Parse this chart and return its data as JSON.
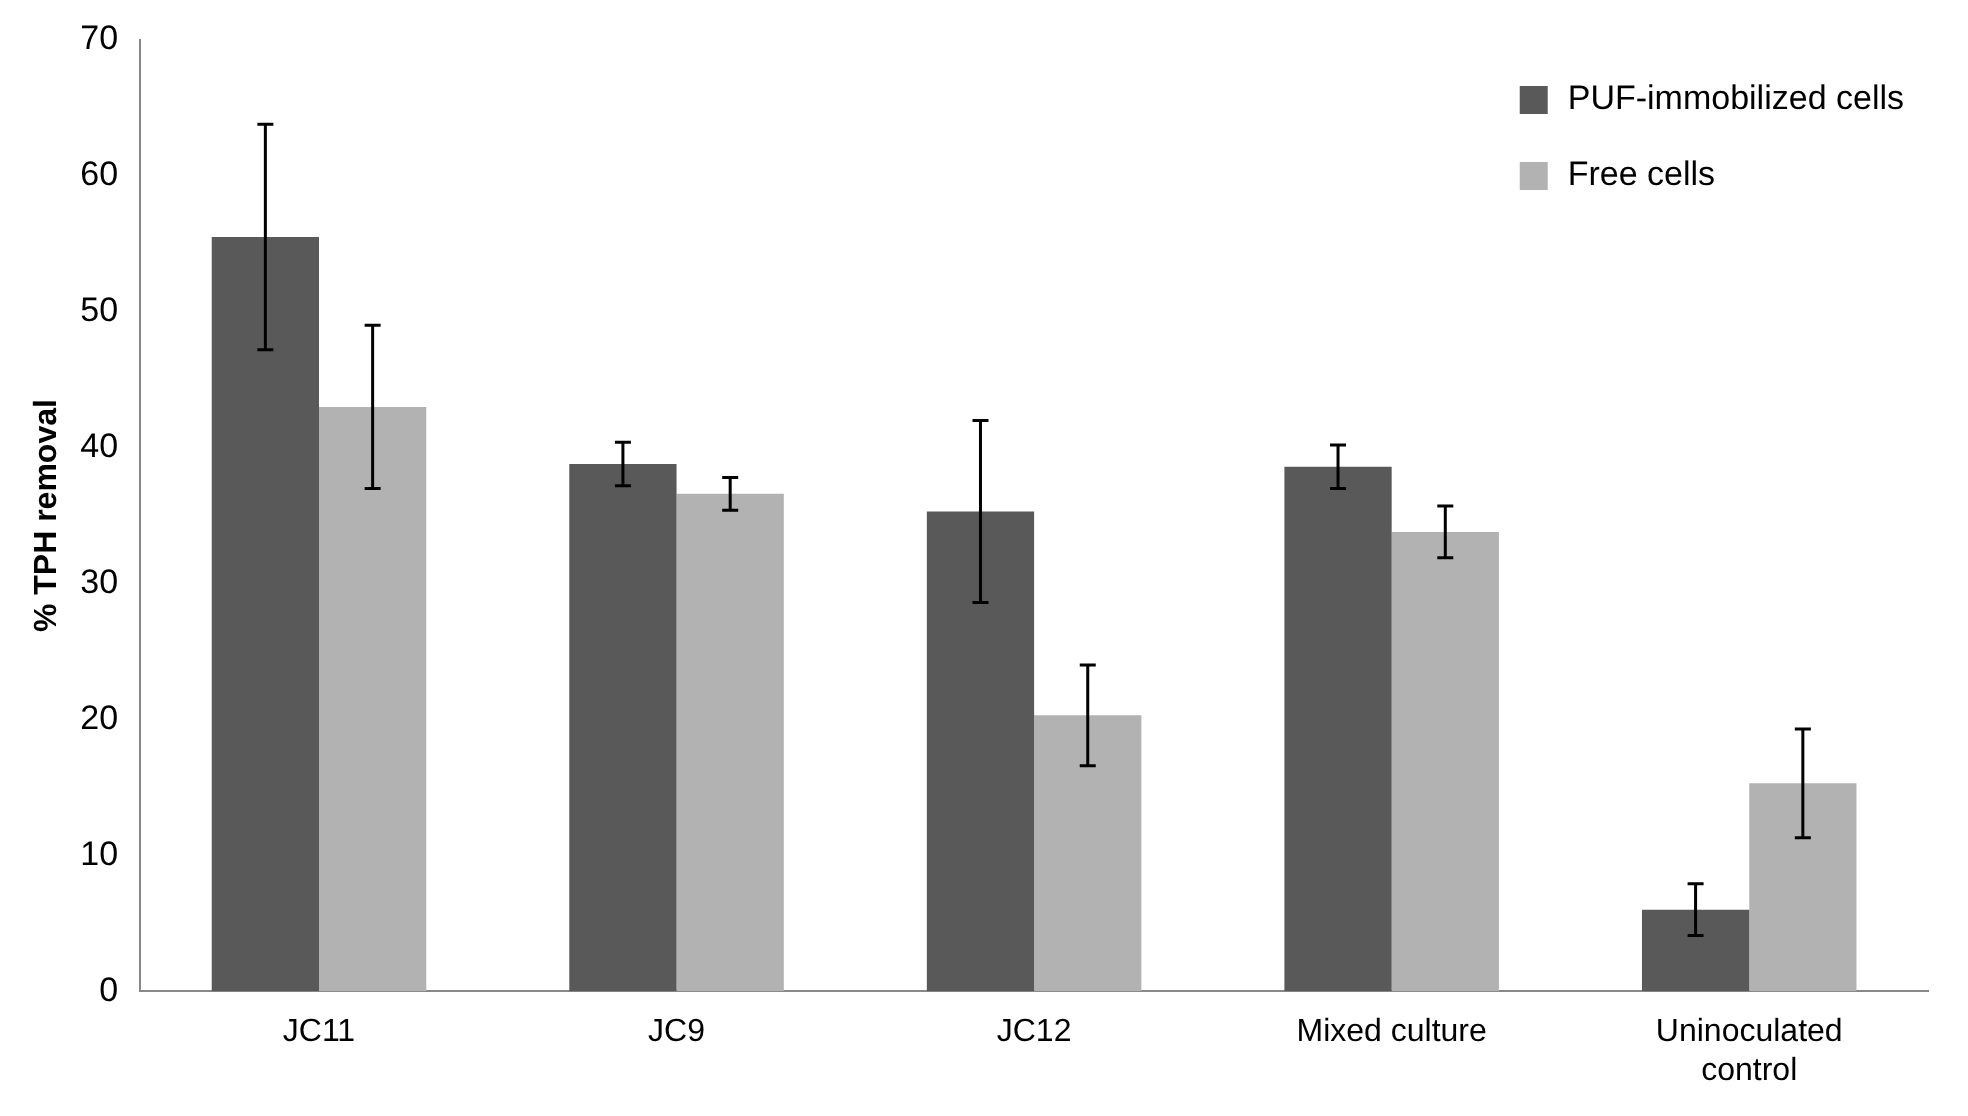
{
  "chart_data": {
    "type": "bar",
    "ylabel": "% TPH removal",
    "categories": [
      "JC11",
      "JC9",
      "JC12",
      "Mixed culture",
      "Uninoculated control"
    ],
    "series": [
      {
        "name": "PUF-immobilized cells",
        "color": "#595959",
        "values": [
          55.5,
          38.8,
          35.3,
          38.6,
          6.0
        ],
        "errors": [
          8.3,
          1.6,
          6.7,
          1.6,
          1.9
        ]
      },
      {
        "name": "Free cells",
        "color": "#b2b2b2",
        "values": [
          43.0,
          36.6,
          20.3,
          33.8,
          15.3
        ],
        "errors": [
          6.0,
          1.2,
          3.7,
          1.9,
          4.0
        ]
      }
    ],
    "ylim": [
      0,
      70
    ],
    "yticks": [
      0,
      10,
      20,
      30,
      40,
      50,
      60,
      70
    ],
    "grid": false,
    "legend": "top right"
  }
}
